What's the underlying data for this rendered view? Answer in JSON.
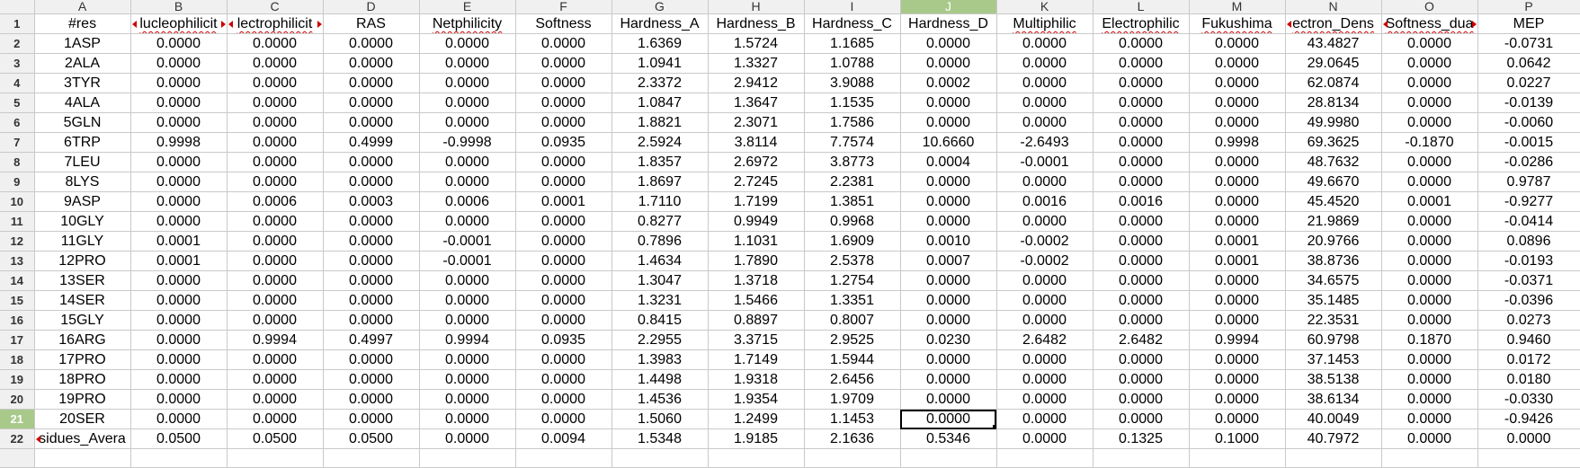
{
  "columns": [
    "A",
    "B",
    "C",
    "D",
    "E",
    "F",
    "G",
    "H",
    "I",
    "J",
    "K",
    "L",
    "M",
    "N",
    "O",
    "P"
  ],
  "selected_column": "J",
  "selected_row": 21,
  "active_cell": "J21",
  "header_row": [
    "#res",
    "Nucleophilicity",
    "Electrophilicity",
    "RAS",
    "Netphilicity",
    "Softness",
    "Hardness_A",
    "Hardness_B",
    "Hardness_C",
    "Hardness_D",
    "Multiphilic",
    "Electrophilic",
    "Fukushima",
    "Electron_Density",
    "Softness_dual",
    "MEP"
  ],
  "header_display": [
    "#res",
    "lucleophilicit",
    "lectrophilicit",
    "RAS",
    "Netphilicity",
    "Softness",
    "Hardness_A",
    "Hardness_B",
    "Hardness_C",
    "Hardness_D",
    "Multiphilic",
    "Electrophilic",
    "Fukushima",
    "ectron_Dens",
    "Softness_dua",
    "MEP"
  ],
  "rows": [
    [
      "1ASP",
      "0.0000",
      "0.0000",
      "0.0000",
      "0.0000",
      "0.0000",
      "1.6369",
      "1.5724",
      "1.1685",
      "0.0000",
      "0.0000",
      "0.0000",
      "0.0000",
      "43.4827",
      "0.0000",
      "-0.0731"
    ],
    [
      "2ALA",
      "0.0000",
      "0.0000",
      "0.0000",
      "0.0000",
      "0.0000",
      "1.0941",
      "1.3327",
      "1.0788",
      "0.0000",
      "0.0000",
      "0.0000",
      "0.0000",
      "29.0645",
      "0.0000",
      "0.0642"
    ],
    [
      "3TYR",
      "0.0000",
      "0.0000",
      "0.0000",
      "0.0000",
      "0.0000",
      "2.3372",
      "2.9412",
      "3.9088",
      "0.0002",
      "0.0000",
      "0.0000",
      "0.0000",
      "62.0874",
      "0.0000",
      "0.0227"
    ],
    [
      "4ALA",
      "0.0000",
      "0.0000",
      "0.0000",
      "0.0000",
      "0.0000",
      "1.0847",
      "1.3647",
      "1.1535",
      "0.0000",
      "0.0000",
      "0.0000",
      "0.0000",
      "28.8134",
      "0.0000",
      "-0.0139"
    ],
    [
      "5GLN",
      "0.0000",
      "0.0000",
      "0.0000",
      "0.0000",
      "0.0000",
      "1.8821",
      "2.3071",
      "1.7586",
      "0.0000",
      "0.0000",
      "0.0000",
      "0.0000",
      "49.9980",
      "0.0000",
      "-0.0060"
    ],
    [
      "6TRP",
      "0.9998",
      "0.0000",
      "0.4999",
      "-0.9998",
      "0.0935",
      "2.5924",
      "3.8114",
      "7.7574",
      "10.6660",
      "-2.6493",
      "0.0000",
      "0.9998",
      "69.3625",
      "-0.1870",
      "-0.0015"
    ],
    [
      "7LEU",
      "0.0000",
      "0.0000",
      "0.0000",
      "0.0000",
      "0.0000",
      "1.8357",
      "2.6972",
      "3.8773",
      "0.0004",
      "-0.0001",
      "0.0000",
      "0.0000",
      "48.7632",
      "0.0000",
      "-0.0286"
    ],
    [
      "8LYS",
      "0.0000",
      "0.0000",
      "0.0000",
      "0.0000",
      "0.0000",
      "1.8697",
      "2.7245",
      "2.2381",
      "0.0000",
      "0.0000",
      "0.0000",
      "0.0000",
      "49.6670",
      "0.0000",
      "0.9787"
    ],
    [
      "9ASP",
      "0.0000",
      "0.0006",
      "0.0003",
      "0.0006",
      "0.0001",
      "1.7110",
      "1.7199",
      "1.3851",
      "0.0000",
      "0.0016",
      "0.0016",
      "0.0000",
      "45.4520",
      "0.0001",
      "-0.9277"
    ],
    [
      "10GLY",
      "0.0000",
      "0.0000",
      "0.0000",
      "0.0000",
      "0.0000",
      "0.8277",
      "0.9949",
      "0.9968",
      "0.0000",
      "0.0000",
      "0.0000",
      "0.0000",
      "21.9869",
      "0.0000",
      "-0.0414"
    ],
    [
      "11GLY",
      "0.0001",
      "0.0000",
      "0.0000",
      "-0.0001",
      "0.0000",
      "0.7896",
      "1.1031",
      "1.6909",
      "0.0010",
      "-0.0002",
      "0.0000",
      "0.0001",
      "20.9766",
      "0.0000",
      "0.0896"
    ],
    [
      "12PRO",
      "0.0001",
      "0.0000",
      "0.0000",
      "-0.0001",
      "0.0000",
      "1.4634",
      "1.7890",
      "2.5378",
      "0.0007",
      "-0.0002",
      "0.0000",
      "0.0001",
      "38.8736",
      "0.0000",
      "-0.0193"
    ],
    [
      "13SER",
      "0.0000",
      "0.0000",
      "0.0000",
      "0.0000",
      "0.0000",
      "1.3047",
      "1.3718",
      "1.2754",
      "0.0000",
      "0.0000",
      "0.0000",
      "0.0000",
      "34.6575",
      "0.0000",
      "-0.0371"
    ],
    [
      "14SER",
      "0.0000",
      "0.0000",
      "0.0000",
      "0.0000",
      "0.0000",
      "1.3231",
      "1.5466",
      "1.3351",
      "0.0000",
      "0.0000",
      "0.0000",
      "0.0000",
      "35.1485",
      "0.0000",
      "-0.0396"
    ],
    [
      "15GLY",
      "0.0000",
      "0.0000",
      "0.0000",
      "0.0000",
      "0.0000",
      "0.8415",
      "0.8897",
      "0.8007",
      "0.0000",
      "0.0000",
      "0.0000",
      "0.0000",
      "22.3531",
      "0.0000",
      "0.0273"
    ],
    [
      "16ARG",
      "0.0000",
      "0.9994",
      "0.4997",
      "0.9994",
      "0.0935",
      "2.2955",
      "3.3715",
      "2.9525",
      "0.0230",
      "2.6482",
      "2.6482",
      "0.9994",
      "60.9798",
      "0.1870",
      "0.9460"
    ],
    [
      "17PRO",
      "0.0000",
      "0.0000",
      "0.0000",
      "0.0000",
      "0.0000",
      "1.3983",
      "1.7149",
      "1.5944",
      "0.0000",
      "0.0000",
      "0.0000",
      "0.0000",
      "37.1453",
      "0.0000",
      "0.0172"
    ],
    [
      "18PRO",
      "0.0000",
      "0.0000",
      "0.0000",
      "0.0000",
      "0.0000",
      "1.4498",
      "1.9318",
      "2.6456",
      "0.0000",
      "0.0000",
      "0.0000",
      "0.0000",
      "38.5138",
      "0.0000",
      "0.0180"
    ],
    [
      "19PRO",
      "0.0000",
      "0.0000",
      "0.0000",
      "0.0000",
      "0.0000",
      "1.4536",
      "1.9354",
      "1.9709",
      "0.0000",
      "0.0000",
      "0.0000",
      "0.0000",
      "38.6134",
      "0.0000",
      "-0.0330"
    ],
    [
      "20SER",
      "0.0000",
      "0.0000",
      "0.0000",
      "0.0000",
      "0.0000",
      "1.5060",
      "1.2499",
      "1.1453",
      "0.0000",
      "0.0000",
      "0.0000",
      "0.0000",
      "40.0049",
      "0.0000",
      "-0.9426"
    ],
    [
      "sidues_Avera",
      "0.0500",
      "0.0500",
      "0.0500",
      "0.0000",
      "0.0094",
      "1.5348",
      "1.9185",
      "2.1636",
      "0.5346",
      "0.0000",
      "0.1325",
      "0.1000",
      "40.7972",
      "0.0000",
      "0.0000"
    ]
  ],
  "row_numbers": [
    "1",
    "2",
    "3",
    "4",
    "5",
    "6",
    "7",
    "8",
    "9",
    "10",
    "11",
    "12",
    "13",
    "14",
    "15",
    "16",
    "17",
    "18",
    "19",
    "20",
    "21",
    "22",
    ""
  ]
}
